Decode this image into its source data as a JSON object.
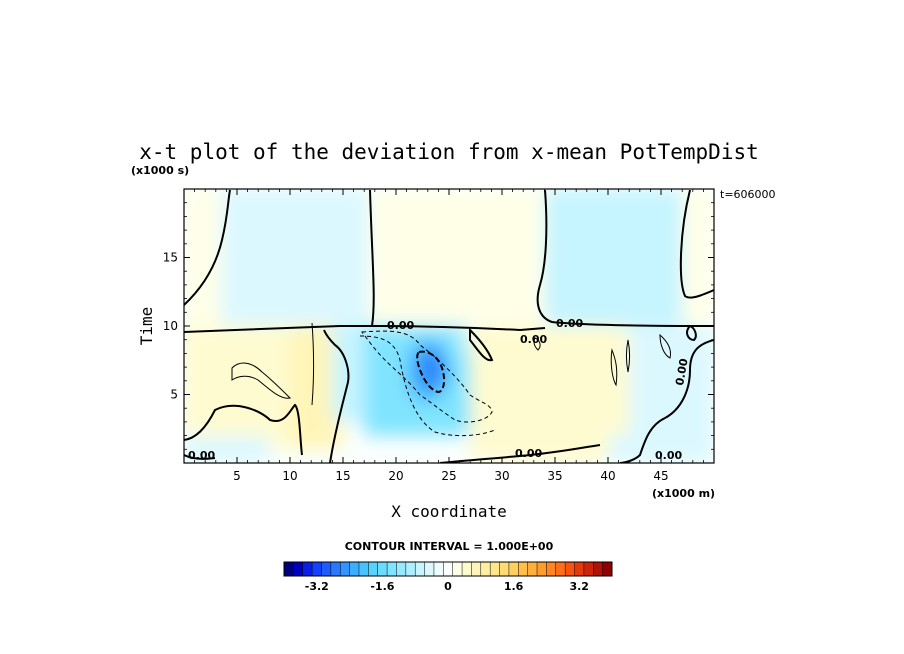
{
  "chart_data": {
    "type": "heatmap",
    "title": "x-t plot of the deviation from x-mean PotTempDist",
    "xlabel": "X coordinate",
    "ylabel": "Time",
    "x_unit": "(x1000 m)",
    "y_unit": "(x1000 s)",
    "xlim": [
      0,
      50
    ],
    "ylim": [
      0,
      20
    ],
    "x_ticks": [
      5,
      10,
      15,
      20,
      25,
      30,
      35,
      40,
      45
    ],
    "y_ticks": [
      5,
      10,
      15
    ],
    "time_label": "t=606000",
    "contour_interval": "CONTOUR INTERVAL = 1.000E+00",
    "contour_labels": [
      "0.00",
      "0.00",
      "0.00",
      "0.00",
      "0.00",
      "0.00",
      "0.00"
    ],
    "colorbar": {
      "range": [
        -4,
        4
      ],
      "ticks": [
        "-3.2",
        "-1.6",
        "0",
        "1.6",
        "3.2"
      ],
      "tick_values": [
        -3.2,
        -1.6,
        0,
        1.6,
        3.2
      ],
      "colors": [
        "#00007f",
        "#0000c0",
        "#0a1ee6",
        "#1440ff",
        "#1e5cff",
        "#2878ff",
        "#3294ff",
        "#3caeff",
        "#46c2ff",
        "#56d2ff",
        "#6adcff",
        "#80e4ff",
        "#96eaff",
        "#aeefff",
        "#c6f4ff",
        "#dcf8ff",
        "#eefcff",
        "#fafffe",
        "#ffffe8",
        "#fffbd0",
        "#fff5b8",
        "#ffefa0",
        "#ffe68a",
        "#ffdb74",
        "#ffcf60",
        "#ffc04c",
        "#ffaf3c",
        "#ff9c2e",
        "#ff8622",
        "#ff6e18",
        "#f85410",
        "#e43a0c",
        "#cc2408",
        "#b01206",
        "#900000"
      ]
    },
    "field_regions": [
      {
        "x": [
          0,
          50
        ],
        "t": [
          0,
          20
        ],
        "value": 0.05
      },
      {
        "x": [
          0,
          3.5
        ],
        "t": [
          10,
          20
        ],
        "value": 0.3
      },
      {
        "x": [
          3.5,
          17.5
        ],
        "t": [
          10,
          20
        ],
        "value": -0.5
      },
      {
        "x": [
          17.5,
          34
        ],
        "t": [
          10,
          20
        ],
        "value": 0.3
      },
      {
        "x": [
          34,
          47
        ],
        "t": [
          10,
          20
        ],
        "value": -0.6
      },
      {
        "x": [
          47,
          50
        ],
        "t": [
          10,
          20
        ],
        "value": 0.3
      },
      {
        "x": [
          0,
          3.5
        ],
        "t": [
          8.5,
          10
        ],
        "value": -0.6
      },
      {
        "x": [
          0,
          13
        ],
        "t": [
          1,
          10
        ],
        "value": 0.35
      },
      {
        "x": [
          10,
          15
        ],
        "t": [
          1,
          10
        ],
        "value": 0.6
      },
      {
        "x": [
          14,
          18
        ],
        "t": [
          3,
          10
        ],
        "value": -0.7
      },
      {
        "x": [
          17,
          27
        ],
        "t": [
          2,
          10
        ],
        "value": -1.4
      },
      {
        "x": [
          21,
          25
        ],
        "t": [
          4.5,
          9
        ],
        "value": -2.4
      },
      {
        "x": [
          22.5,
          24.5
        ],
        "t": [
          5.5,
          8.2
        ],
        "value": -2.8
      },
      {
        "x": [
          26,
          29
        ],
        "t": [
          8,
          10
        ],
        "value": -0.8
      },
      {
        "x": [
          27,
          40
        ],
        "t": [
          0,
          10
        ],
        "value": 0.4
      },
      {
        "x": [
          40,
          50
        ],
        "t": [
          0,
          10
        ],
        "value": -0.5
      },
      {
        "x": [
          39,
          42
        ],
        "t": [
          2,
          10
        ],
        "value": 0.4
      },
      {
        "x": [
          0,
          8
        ],
        "t": [
          0,
          2
        ],
        "value": -0.5
      }
    ]
  }
}
